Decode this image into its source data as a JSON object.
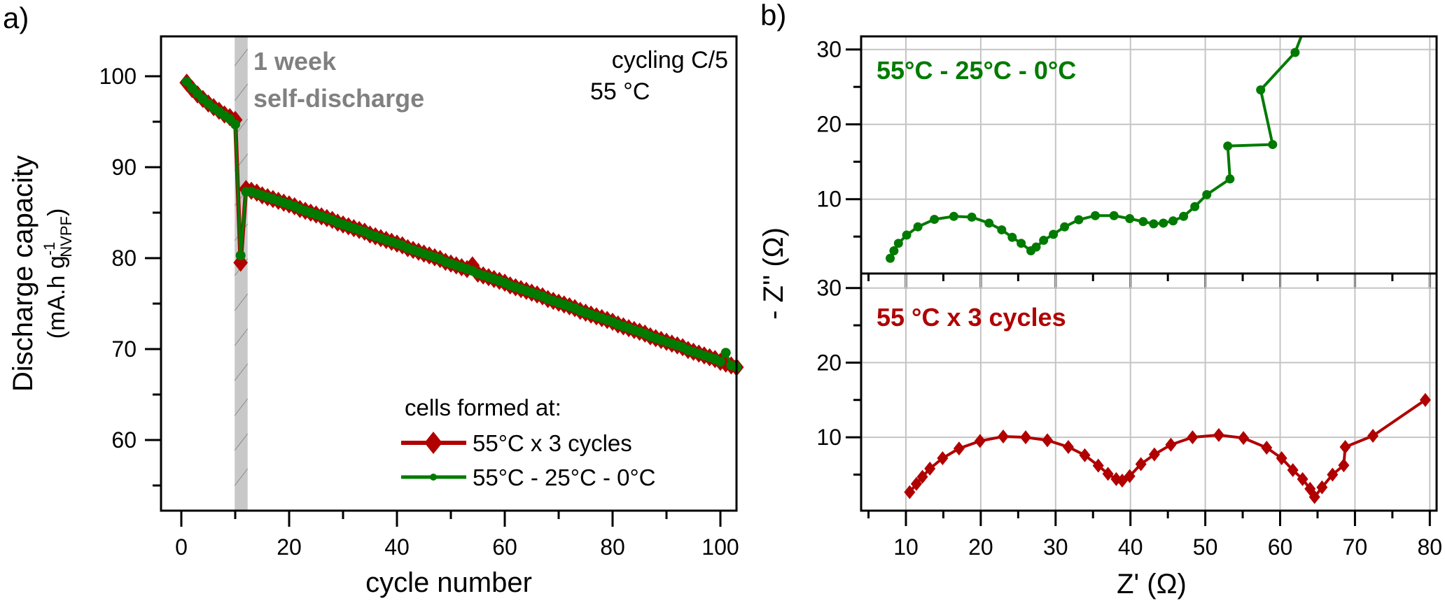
{
  "colors": {
    "red": "#b00000",
    "green": "#007a00",
    "band": "#c8c8c8",
    "grid": "#c4c4c4",
    "note_gray": "#808080"
  },
  "chart_data": [
    {
      "panel_label": "a)",
      "type": "line",
      "xlabel": "cycle number",
      "ylabel": "Discharge capacity",
      "ylabel_units": {
        "open": "(mA.h g",
        "sup": "-1",
        "sub": "NVPF",
        "close": ")"
      },
      "xlim": [
        -3.8,
        103
      ],
      "ylim": [
        52.2,
        104.4
      ],
      "xticks": [
        0,
        20,
        40,
        60,
        80,
        100
      ],
      "yticks": [
        60,
        70,
        80,
        90,
        100
      ],
      "grid": false,
      "shaded_region": {
        "x": [
          9.9,
          12.3
        ],
        "label_lines": [
          "1 week",
          "self-discharge"
        ]
      },
      "annotation_lines": [
        "cycling C/5",
        "55 °C"
      ],
      "legend": {
        "title": "cells formed at:",
        "placement": "bottom-right"
      },
      "series": [
        {
          "name": "55°C x 3 cycles",
          "color": "#b00000",
          "marker": "diamond",
          "x": [
            1,
            2,
            3,
            4,
            5,
            6,
            7,
            8,
            9,
            10,
            11,
            12,
            13,
            14,
            15,
            16,
            17,
            18,
            19,
            20,
            21,
            22,
            23,
            24,
            25,
            26,
            27,
            28,
            29,
            30,
            31,
            32,
            33,
            34,
            35,
            36,
            37,
            38,
            39,
            40,
            41,
            42,
            43,
            44,
            45,
            46,
            47,
            48,
            49,
            50,
            51,
            52,
            53,
            54,
            55,
            56,
            57,
            58,
            59,
            60,
            61,
            62,
            63,
            64,
            65,
            66,
            67,
            68,
            69,
            70,
            71,
            72,
            73,
            74,
            75,
            76,
            77,
            78,
            79,
            80,
            81,
            82,
            83,
            84,
            85,
            86,
            87,
            88,
            89,
            90,
            91,
            92,
            93,
            94,
            95,
            96,
            97,
            98,
            99,
            100,
            101,
            102,
            103
          ],
          "y": [
            99.3,
            98.6,
            98.0,
            97.5,
            97.0,
            96.6,
            96.2,
            95.8,
            95.5,
            95.2,
            79.5,
            87.6,
            87.4,
            87.2,
            86.9,
            86.7,
            86.5,
            86.3,
            86.1,
            85.9,
            85.7,
            85.4,
            85.2,
            85.0,
            84.8,
            84.6,
            84.4,
            84.2,
            83.9,
            83.7,
            83.5,
            83.3,
            83.1,
            82.9,
            82.6,
            82.4,
            82.2,
            82.0,
            81.8,
            81.6,
            81.4,
            81.1,
            80.9,
            80.7,
            80.5,
            80.3,
            80.1,
            79.9,
            79.6,
            79.4,
            79.2,
            79.0,
            78.8,
            79.2,
            78.3,
            78.1,
            77.9,
            77.7,
            77.5,
            77.3,
            77.0,
            76.8,
            76.6,
            76.4,
            76.2,
            76.0,
            75.8,
            75.5,
            75.3,
            75.1,
            74.9,
            74.7,
            74.5,
            74.2,
            74.0,
            73.8,
            73.6,
            73.4,
            73.2,
            73.0,
            72.7,
            72.5,
            72.3,
            72.1,
            71.9,
            71.7,
            71.4,
            71.2,
            71.0,
            70.8,
            70.6,
            70.4,
            70.2,
            69.9,
            69.7,
            69.5,
            69.3,
            69.1,
            68.9,
            68.6,
            68.4,
            68.2,
            68.0
          ]
        },
        {
          "name": "55°C - 25°C - 0°C",
          "color": "#007a00",
          "marker": "circle",
          "x": [
            1,
            2,
            3,
            4,
            5,
            6,
            7,
            8,
            9,
            10,
            11,
            12,
            13,
            14,
            15,
            16,
            17,
            18,
            19,
            20,
            21,
            22,
            23,
            24,
            25,
            26,
            27,
            28,
            29,
            30,
            31,
            32,
            33,
            34,
            35,
            36,
            37,
            38,
            39,
            40,
            41,
            42,
            43,
            44,
            45,
            46,
            47,
            48,
            49,
            50,
            51,
            52,
            53,
            54,
            55,
            56,
            57,
            58,
            59,
            60,
            61,
            62,
            63,
            64,
            65,
            66,
            67,
            68,
            69,
            70,
            71,
            72,
            73,
            74,
            75,
            76,
            77,
            78,
            79,
            80,
            81,
            82,
            83,
            84,
            85,
            86,
            87,
            88,
            89,
            90,
            91,
            92,
            93,
            94,
            95,
            96,
            97,
            98,
            99,
            100,
            101,
            102,
            103
          ],
          "y": [
            99.4,
            98.7,
            98.1,
            97.5,
            97.0,
            96.5,
            96.1,
            95.7,
            95.3,
            94.7,
            80.3,
            87.3,
            87.3,
            87.1,
            86.9,
            86.7,
            86.5,
            86.3,
            86.1,
            85.9,
            85.7,
            85.4,
            85.2,
            85.0,
            84.8,
            84.6,
            84.4,
            84.2,
            83.9,
            83.7,
            83.5,
            83.3,
            83.1,
            82.9,
            82.6,
            82.4,
            82.2,
            82.0,
            81.8,
            81.6,
            81.4,
            81.1,
            80.9,
            80.7,
            80.5,
            80.3,
            80.1,
            79.9,
            79.6,
            79.4,
            79.2,
            79.0,
            78.8,
            78.6,
            78.3,
            78.1,
            77.9,
            77.7,
            77.5,
            77.3,
            77.0,
            76.8,
            76.6,
            76.4,
            76.2,
            76.0,
            75.8,
            75.5,
            75.3,
            75.1,
            74.9,
            74.7,
            74.5,
            74.2,
            74.0,
            73.8,
            73.6,
            73.4,
            73.2,
            73.0,
            72.7,
            72.5,
            72.3,
            72.1,
            71.9,
            71.7,
            71.4,
            71.2,
            71.0,
            70.8,
            70.6,
            70.4,
            70.2,
            69.9,
            69.7,
            69.5,
            69.3,
            69.1,
            68.9,
            68.6,
            69.6,
            68.2,
            68.0
          ]
        }
      ]
    },
    {
      "panel_label": "b)",
      "type": "scatter",
      "xlabel": "Z' (Ω)",
      "ylabel": "- Z'' (Ω)",
      "xlim": [
        4.0,
        80.9
      ],
      "xticks": [
        10,
        20,
        30,
        40,
        50,
        60,
        70,
        80
      ],
      "grid": true,
      "subplots": [
        {
          "tag": "55°C - 25°C - 0°C",
          "color": "#007a00",
          "marker": "circle",
          "ylim": [
            0.1,
            31.75
          ],
          "yticks": [
            10,
            20,
            30
          ],
          "x": [
            7.9,
            8.4,
            9.0,
            10.1,
            11.6,
            13.8,
            16.4,
            18.8,
            21.1,
            22.8,
            24.2,
            25.4,
            26.7,
            27.4,
            28.4,
            29.7,
            31.2,
            33.1,
            35.3,
            37.8,
            39.9,
            41.7,
            43.1,
            44.4,
            45.7,
            47.1,
            48.6,
            50.2,
            53.3,
            53.0,
            59.0,
            57.4,
            62.0,
            63.5
          ],
          "y": [
            2.1,
            3.1,
            4.1,
            5.2,
            6.3,
            7.3,
            7.7,
            7.6,
            6.8,
            5.9,
            4.9,
            4.1,
            3.1,
            3.6,
            4.5,
            5.3,
            6.3,
            7.25,
            7.8,
            7.8,
            7.4,
            7.0,
            6.7,
            6.8,
            7.1,
            7.7,
            9.0,
            10.6,
            12.7,
            17.1,
            17.3,
            24.6,
            29.6,
            33.5
          ]
        },
        {
          "tag": "55 °C x 3 cycles",
          "color": "#b00000",
          "marker": "diamond",
          "ylim": [
            0.16,
            31.9
          ],
          "yticks": [
            10,
            20,
            30
          ],
          "x": [
            10.5,
            11.4,
            12.2,
            13.2,
            14.9,
            17.1,
            19.9,
            23.0,
            26.0,
            28.9,
            31.7,
            33.9,
            35.7,
            37.0,
            38.1,
            38.9,
            39.9,
            41.4,
            43.2,
            45.4,
            48.3,
            51.8,
            55.1,
            58.2,
            60.2,
            61.7,
            63.0,
            64.0,
            64.6,
            65.6,
            67.0,
            68.5,
            68.7,
            72.4,
            79.4
          ],
          "y": [
            2.65,
            3.75,
            4.7,
            5.8,
            7.2,
            8.5,
            9.5,
            10.1,
            10.0,
            9.6,
            8.7,
            7.6,
            6.2,
            5.1,
            4.4,
            4.2,
            4.8,
            6.4,
            7.7,
            9.0,
            10.0,
            10.3,
            9.9,
            8.6,
            7.2,
            5.6,
            4.4,
            3.1,
            2.0,
            3.3,
            5.0,
            6.25,
            8.7,
            10.2,
            15.0
          ]
        }
      ]
    }
  ]
}
